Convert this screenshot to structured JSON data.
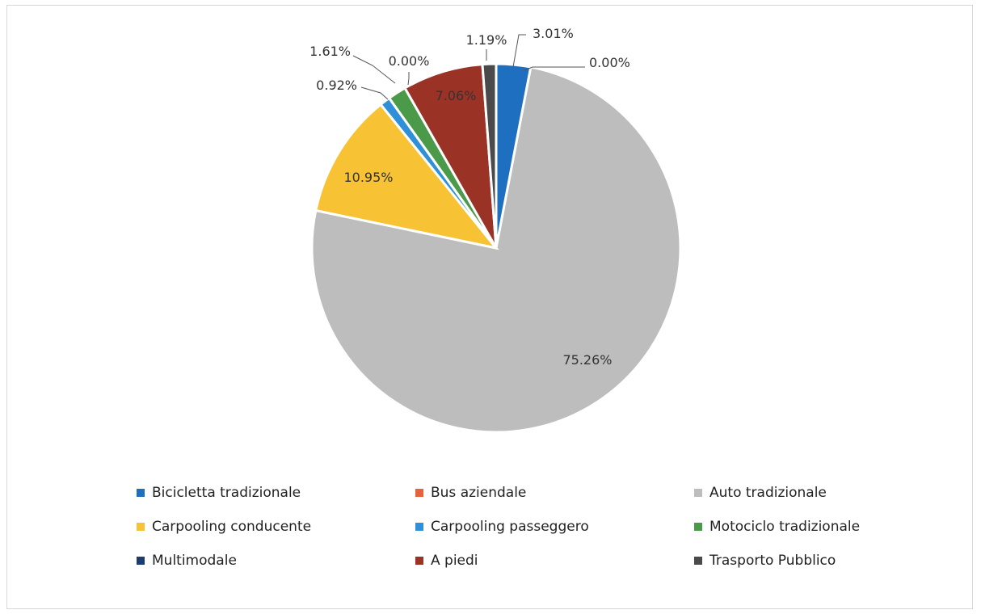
{
  "chart_data": {
    "type": "pie",
    "title": "",
    "legend_position": "bottom",
    "start_angle_deg": 0,
    "direction": "clockwise",
    "slices": [
      {
        "name": "Bicicletta tradizionale",
        "value": 3.01,
        "label": "3.01%",
        "color": "#1f6fc1"
      },
      {
        "name": "Bus aziendale",
        "value": 0.0,
        "label": "0.00%",
        "color": "#e8613f"
      },
      {
        "name": "Auto tradizionale",
        "value": 75.26,
        "label": "75.26%",
        "color": "#bdbdbd"
      },
      {
        "name": "Carpooling conducente",
        "value": 10.95,
        "label": "10.95%",
        "color": "#f7c234"
      },
      {
        "name": "Carpooling passeggero",
        "value": 0.92,
        "label": "0.92%",
        "color": "#2f8fd8"
      },
      {
        "name": "Motociclo tradizionale",
        "value": 1.61,
        "label": "1.61%",
        "color": "#4a9a4a"
      },
      {
        "name": "Multimodale",
        "value": 0.0,
        "label": "0.00%",
        "color": "#1d3c6e"
      },
      {
        "name": "A piedi",
        "value": 7.06,
        "label": "7.06%",
        "color": "#9b3226"
      },
      {
        "name": "Trasporto Pubblico",
        "value": 1.19,
        "label": "1.19%",
        "color": "#4a4a4a"
      }
    ]
  }
}
